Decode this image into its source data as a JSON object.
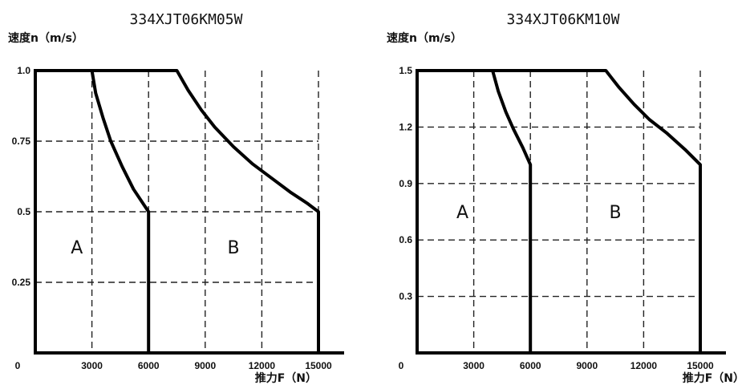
{
  "chart_data": [
    {
      "type": "line",
      "title": "334XJT06KM05W",
      "ylabel": "速度n（m/s）",
      "xlabel": "推力F（N）",
      "origin_label": "0",
      "xlim": [
        0,
        15000
      ],
      "ylim": [
        0,
        1.0
      ],
      "xticks": [
        0,
        3000,
        6000,
        9000,
        12000,
        15000
      ],
      "xtick_labels": [
        "3000",
        "6000",
        "9000",
        "12000",
        "15000"
      ],
      "yticks": [
        0.25,
        0.5,
        0.75,
        1.0
      ],
      "ytick_labels": [
        "0.25",
        "0.5",
        "0.75",
        "1.0"
      ],
      "grid": true,
      "series": [
        {
          "x": [
            0,
            3000,
            3200,
            3600,
            4000,
            4600,
            5200,
            5700,
            6000,
            6000
          ],
          "y": [
            1.0,
            1.0,
            0.92,
            0.83,
            0.75,
            0.66,
            0.58,
            0.53,
            0.5,
            0
          ]
        },
        {
          "x": [
            3000,
            7500,
            8100,
            8800,
            9500,
            10500,
            11500,
            12500,
            13500,
            14400,
            15000,
            15000
          ],
          "y": [
            1.0,
            1.0,
            0.93,
            0.86,
            0.8,
            0.73,
            0.67,
            0.62,
            0.57,
            0.53,
            0.5,
            0
          ]
        }
      ],
      "regions": [
        {
          "label": "A",
          "x": 2200,
          "y": 0.375
        },
        {
          "label": "B",
          "x": 10500,
          "y": 0.375
        }
      ]
    },
    {
      "type": "line",
      "title": "334XJT06KM10W",
      "ylabel": "速度n（m/s）",
      "xlabel": "推力F（N）",
      "origin_label": "0",
      "xlim": [
        0,
        15000
      ],
      "ylim": [
        0,
        1.5
      ],
      "xticks": [
        0,
        3000,
        6000,
        9000,
        12000,
        15000
      ],
      "xtick_labels": [
        "3000",
        "6000",
        "9000",
        "12000",
        "15000"
      ],
      "yticks": [
        0.3,
        0.6,
        0.9,
        1.2,
        1.5
      ],
      "ytick_labels": [
        "0.3",
        "0.6",
        "0.9",
        "1.2",
        "1.5"
      ],
      "grid": true,
      "series": [
        {
          "x": [
            0,
            4000,
            4300,
            4700,
            5100,
            5600,
            6000,
            6000
          ],
          "y": [
            1.5,
            1.5,
            1.39,
            1.28,
            1.19,
            1.09,
            1.0,
            0
          ]
        },
        {
          "x": [
            4000,
            10000,
            10700,
            11500,
            12300,
            13200,
            14200,
            15000,
            15000
          ],
          "y": [
            1.5,
            1.5,
            1.41,
            1.32,
            1.24,
            1.17,
            1.08,
            1.0,
            0
          ]
        }
      ],
      "regions": [
        {
          "label": "A",
          "x": 2400,
          "y": 0.75
        },
        {
          "label": "B",
          "x": 10500,
          "y": 0.75
        }
      ]
    }
  ]
}
